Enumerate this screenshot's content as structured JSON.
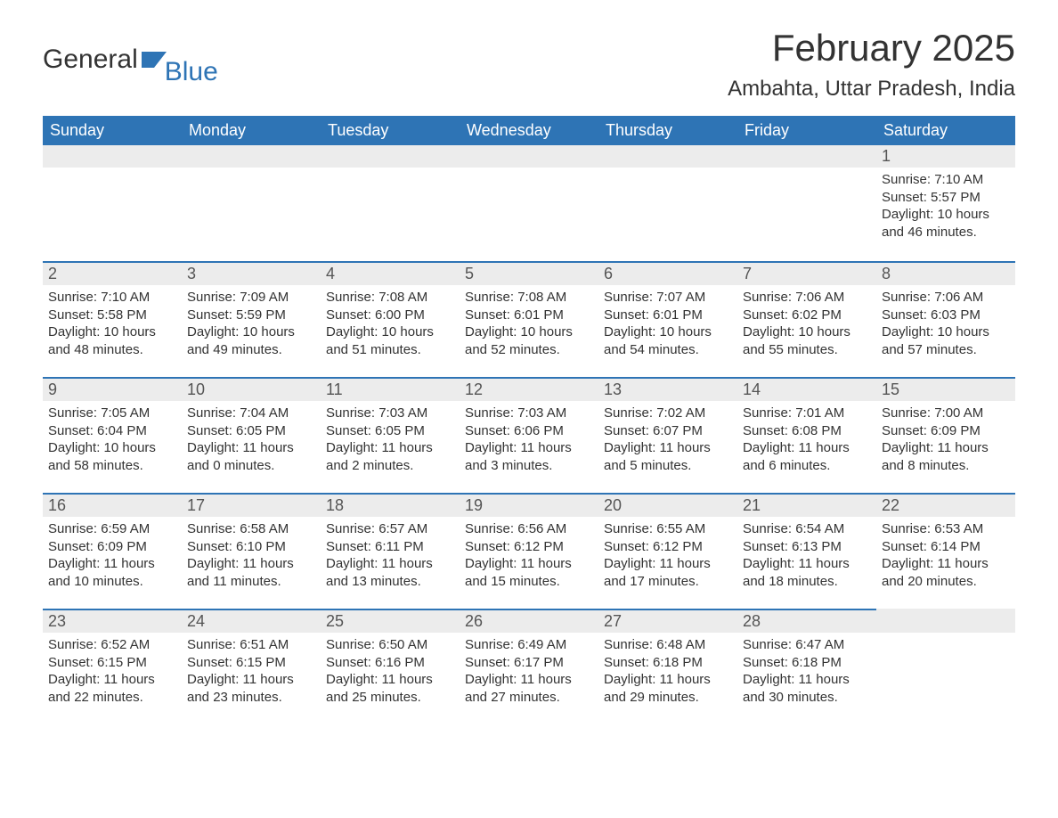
{
  "logo": {
    "text_general": "General",
    "text_blue": "Blue",
    "flag_color": "#2e74b5"
  },
  "title": "February 2025",
  "location": "Ambahta, Uttar Pradesh, India",
  "colors": {
    "header_bg": "#2e74b5",
    "header_text": "#ffffff",
    "daynum_bg": "#ececec",
    "cell_border": "#2e74b5",
    "body_text": "#333333",
    "page_bg": "#ffffff"
  },
  "typography": {
    "title_fontsize": 42,
    "location_fontsize": 24,
    "weekday_fontsize": 18,
    "daynum_fontsize": 18,
    "cell_fontsize": 15
  },
  "layout": {
    "columns": 7,
    "rows": 5
  },
  "weekdays": [
    "Sunday",
    "Monday",
    "Tuesday",
    "Wednesday",
    "Thursday",
    "Friday",
    "Saturday"
  ],
  "weeks": [
    [
      null,
      null,
      null,
      null,
      null,
      null,
      {
        "n": "1",
        "sunrise": "Sunrise: 7:10 AM",
        "sunset": "Sunset: 5:57 PM",
        "day1": "Daylight: 10 hours",
        "day2": "and 46 minutes."
      }
    ],
    [
      {
        "n": "2",
        "sunrise": "Sunrise: 7:10 AM",
        "sunset": "Sunset: 5:58 PM",
        "day1": "Daylight: 10 hours",
        "day2": "and 48 minutes."
      },
      {
        "n": "3",
        "sunrise": "Sunrise: 7:09 AM",
        "sunset": "Sunset: 5:59 PM",
        "day1": "Daylight: 10 hours",
        "day2": "and 49 minutes."
      },
      {
        "n": "4",
        "sunrise": "Sunrise: 7:08 AM",
        "sunset": "Sunset: 6:00 PM",
        "day1": "Daylight: 10 hours",
        "day2": "and 51 minutes."
      },
      {
        "n": "5",
        "sunrise": "Sunrise: 7:08 AM",
        "sunset": "Sunset: 6:01 PM",
        "day1": "Daylight: 10 hours",
        "day2": "and 52 minutes."
      },
      {
        "n": "6",
        "sunrise": "Sunrise: 7:07 AM",
        "sunset": "Sunset: 6:01 PM",
        "day1": "Daylight: 10 hours",
        "day2": "and 54 minutes."
      },
      {
        "n": "7",
        "sunrise": "Sunrise: 7:06 AM",
        "sunset": "Sunset: 6:02 PM",
        "day1": "Daylight: 10 hours",
        "day2": "and 55 minutes."
      },
      {
        "n": "8",
        "sunrise": "Sunrise: 7:06 AM",
        "sunset": "Sunset: 6:03 PM",
        "day1": "Daylight: 10 hours",
        "day2": "and 57 minutes."
      }
    ],
    [
      {
        "n": "9",
        "sunrise": "Sunrise: 7:05 AM",
        "sunset": "Sunset: 6:04 PM",
        "day1": "Daylight: 10 hours",
        "day2": "and 58 minutes."
      },
      {
        "n": "10",
        "sunrise": "Sunrise: 7:04 AM",
        "sunset": "Sunset: 6:05 PM",
        "day1": "Daylight: 11 hours",
        "day2": "and 0 minutes."
      },
      {
        "n": "11",
        "sunrise": "Sunrise: 7:03 AM",
        "sunset": "Sunset: 6:05 PM",
        "day1": "Daylight: 11 hours",
        "day2": "and 2 minutes."
      },
      {
        "n": "12",
        "sunrise": "Sunrise: 7:03 AM",
        "sunset": "Sunset: 6:06 PM",
        "day1": "Daylight: 11 hours",
        "day2": "and 3 minutes."
      },
      {
        "n": "13",
        "sunrise": "Sunrise: 7:02 AM",
        "sunset": "Sunset: 6:07 PM",
        "day1": "Daylight: 11 hours",
        "day2": "and 5 minutes."
      },
      {
        "n": "14",
        "sunrise": "Sunrise: 7:01 AM",
        "sunset": "Sunset: 6:08 PM",
        "day1": "Daylight: 11 hours",
        "day2": "and 6 minutes."
      },
      {
        "n": "15",
        "sunrise": "Sunrise: 7:00 AM",
        "sunset": "Sunset: 6:09 PM",
        "day1": "Daylight: 11 hours",
        "day2": "and 8 minutes."
      }
    ],
    [
      {
        "n": "16",
        "sunrise": "Sunrise: 6:59 AM",
        "sunset": "Sunset: 6:09 PM",
        "day1": "Daylight: 11 hours",
        "day2": "and 10 minutes."
      },
      {
        "n": "17",
        "sunrise": "Sunrise: 6:58 AM",
        "sunset": "Sunset: 6:10 PM",
        "day1": "Daylight: 11 hours",
        "day2": "and 11 minutes."
      },
      {
        "n": "18",
        "sunrise": "Sunrise: 6:57 AM",
        "sunset": "Sunset: 6:11 PM",
        "day1": "Daylight: 11 hours",
        "day2": "and 13 minutes."
      },
      {
        "n": "19",
        "sunrise": "Sunrise: 6:56 AM",
        "sunset": "Sunset: 6:12 PM",
        "day1": "Daylight: 11 hours",
        "day2": "and 15 minutes."
      },
      {
        "n": "20",
        "sunrise": "Sunrise: 6:55 AM",
        "sunset": "Sunset: 6:12 PM",
        "day1": "Daylight: 11 hours",
        "day2": "and 17 minutes."
      },
      {
        "n": "21",
        "sunrise": "Sunrise: 6:54 AM",
        "sunset": "Sunset: 6:13 PM",
        "day1": "Daylight: 11 hours",
        "day2": "and 18 minutes."
      },
      {
        "n": "22",
        "sunrise": "Sunrise: 6:53 AM",
        "sunset": "Sunset: 6:14 PM",
        "day1": "Daylight: 11 hours",
        "day2": "and 20 minutes."
      }
    ],
    [
      {
        "n": "23",
        "sunrise": "Sunrise: 6:52 AM",
        "sunset": "Sunset: 6:15 PM",
        "day1": "Daylight: 11 hours",
        "day2": "and 22 minutes."
      },
      {
        "n": "24",
        "sunrise": "Sunrise: 6:51 AM",
        "sunset": "Sunset: 6:15 PM",
        "day1": "Daylight: 11 hours",
        "day2": "and 23 minutes."
      },
      {
        "n": "25",
        "sunrise": "Sunrise: 6:50 AM",
        "sunset": "Sunset: 6:16 PM",
        "day1": "Daylight: 11 hours",
        "day2": "and 25 minutes."
      },
      {
        "n": "26",
        "sunrise": "Sunrise: 6:49 AM",
        "sunset": "Sunset: 6:17 PM",
        "day1": "Daylight: 11 hours",
        "day2": "and 27 minutes."
      },
      {
        "n": "27",
        "sunrise": "Sunrise: 6:48 AM",
        "sunset": "Sunset: 6:18 PM",
        "day1": "Daylight: 11 hours",
        "day2": "and 29 minutes."
      },
      {
        "n": "28",
        "sunrise": "Sunrise: 6:47 AM",
        "sunset": "Sunset: 6:18 PM",
        "day1": "Daylight: 11 hours",
        "day2": "and 30 minutes."
      },
      null
    ]
  ]
}
